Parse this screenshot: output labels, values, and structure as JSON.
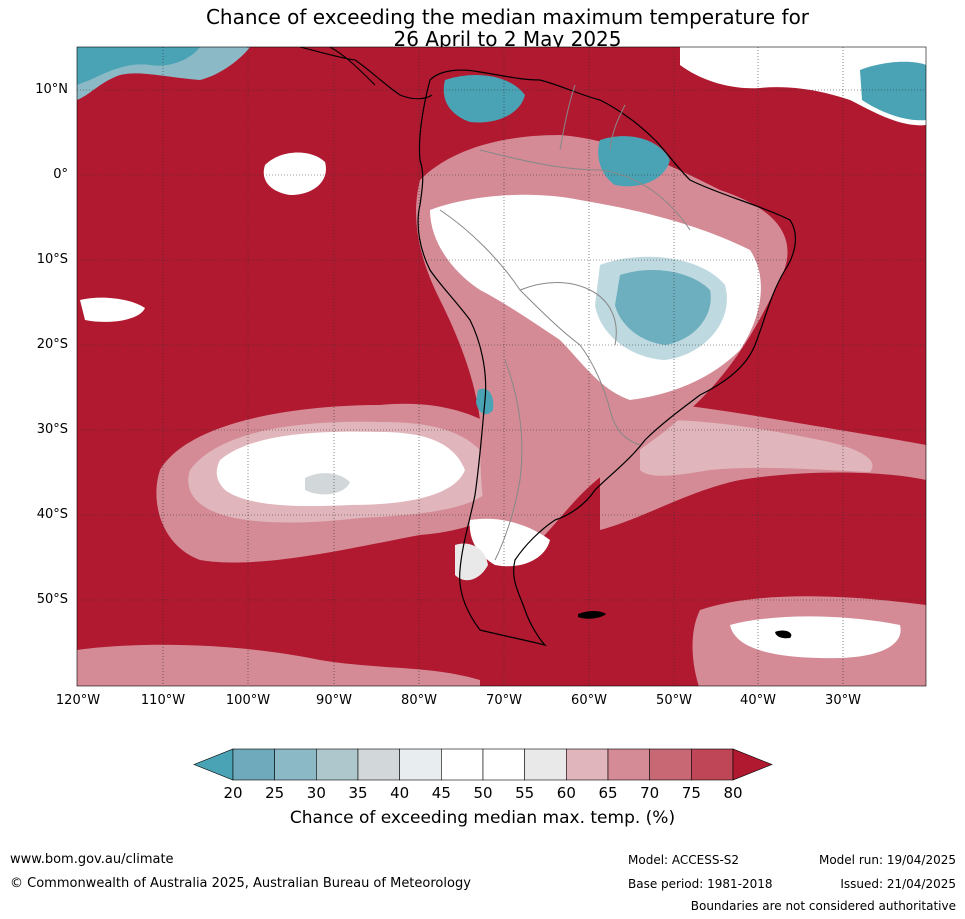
{
  "title": {
    "line1": "Chance of exceeding the median maximum temperature for",
    "line2": "26 April to 2 May 2025"
  },
  "axes": {
    "lat_labels": [
      "10°N",
      "0°",
      "10°S",
      "20°S",
      "30°S",
      "40°S",
      "50°S"
    ],
    "lon_labels": [
      "120°W",
      "110°W",
      "100°W",
      "90°W",
      "80°W",
      "70°W",
      "60°W",
      "50°W",
      "40°W",
      "30°W"
    ]
  },
  "colorbar": {
    "ticks": [
      "20",
      "25",
      "30",
      "35",
      "40",
      "45",
      "50",
      "55",
      "60",
      "65",
      "70",
      "75",
      "80"
    ],
    "colors": [
      "#4aa3b5",
      "#6eaabb",
      "#8bbac6",
      "#aec7cc",
      "#d2d8da",
      "#e8eef0",
      "#ffffff",
      "#ffffff",
      "#e9e9ea",
      "#e0b5bb",
      "#d48b96",
      "#c86875",
      "#be4656",
      "#b0192f"
    ],
    "label": "Chance of exceeding median max. temp. (%)"
  },
  "map_colors": {
    "ocean_hot": "#b0192f",
    "cool": "#4aa3b5",
    "neutral": "#ffffff"
  },
  "footer": {
    "website": "www.bom.gov.au/climate",
    "copyright": "© Commonwealth of Australia 2025, Australian Bureau of Meteorology",
    "model": "Model: ACCESS-S2",
    "base_period": "Base period: 1981-2018",
    "model_run": "Model run: 19/04/2025",
    "issued": "Issued: 21/04/2025",
    "disclaimer": "Boundaries are not considered authoritative"
  }
}
